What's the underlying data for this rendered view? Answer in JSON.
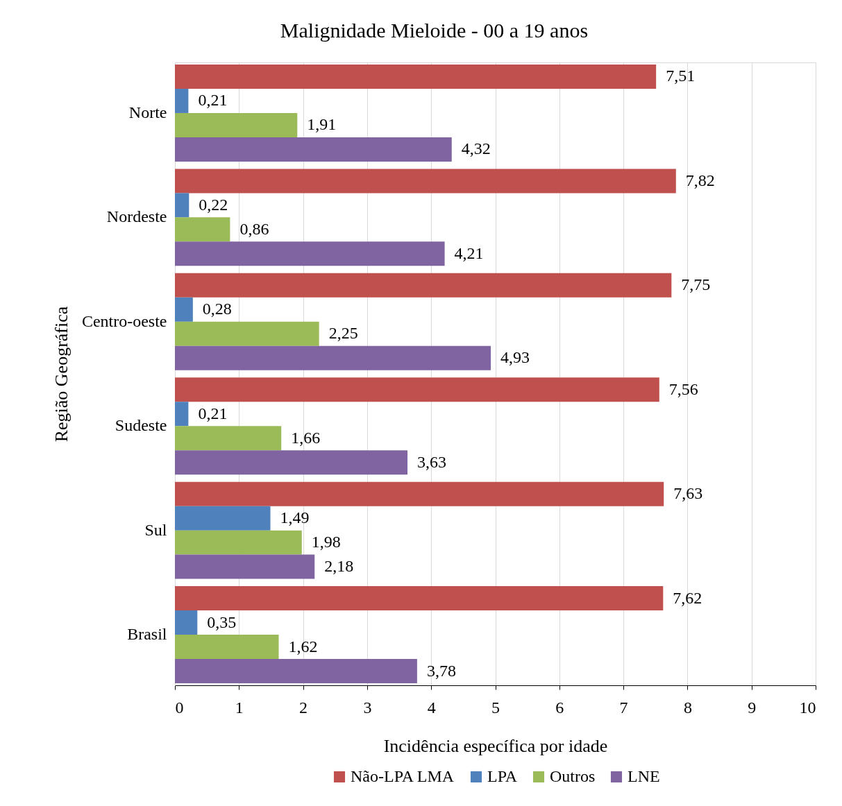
{
  "chart_data": {
    "type": "bar",
    "orientation": "horizontal",
    "title": "Malignidade Mieloide - 00 a 19 anos",
    "xlabel": "Incidência específica por idade",
    "ylabel": "Região Geográfica",
    "categories": [
      "Norte",
      "Nordeste",
      "Centro-oeste",
      "Sudeste",
      "Sul",
      "Brasil"
    ],
    "series": [
      {
        "name": "Não-LPA LMA",
        "color": "#c0504d",
        "values": [
          7.51,
          7.82,
          7.75,
          7.56,
          7.63,
          7.62
        ],
        "value_labels": [
          "7,51",
          "7,82",
          "7,75",
          "7,56",
          "7,63",
          "7,62"
        ]
      },
      {
        "name": "LPA",
        "color": "#4f81bd",
        "values": [
          0.21,
          0.22,
          0.28,
          0.21,
          1.49,
          0.35
        ],
        "value_labels": [
          "0,21",
          "0,22",
          "0,28",
          "0,21",
          "1,49",
          "0,35"
        ]
      },
      {
        "name": "Outros",
        "color": "#9bbb59",
        "values": [
          1.91,
          0.86,
          2.25,
          1.66,
          1.98,
          1.62
        ],
        "value_labels": [
          "1,91",
          "0,86",
          "2,25",
          "1,66",
          "1,98",
          "1,62"
        ]
      },
      {
        "name": "LNE",
        "color": "#8064a2",
        "values": [
          4.32,
          4.21,
          4.93,
          3.63,
          2.18,
          3.78
        ],
        "value_labels": [
          "4,32",
          "4,21",
          "4,93",
          "3,63",
          "2,18",
          "3,78"
        ]
      }
    ],
    "xlim": [
      0,
      10
    ],
    "xticks": [
      0,
      1,
      2,
      3,
      4,
      5,
      6,
      7,
      8,
      9,
      10
    ],
    "grid": "x",
    "legend": "bottom"
  }
}
